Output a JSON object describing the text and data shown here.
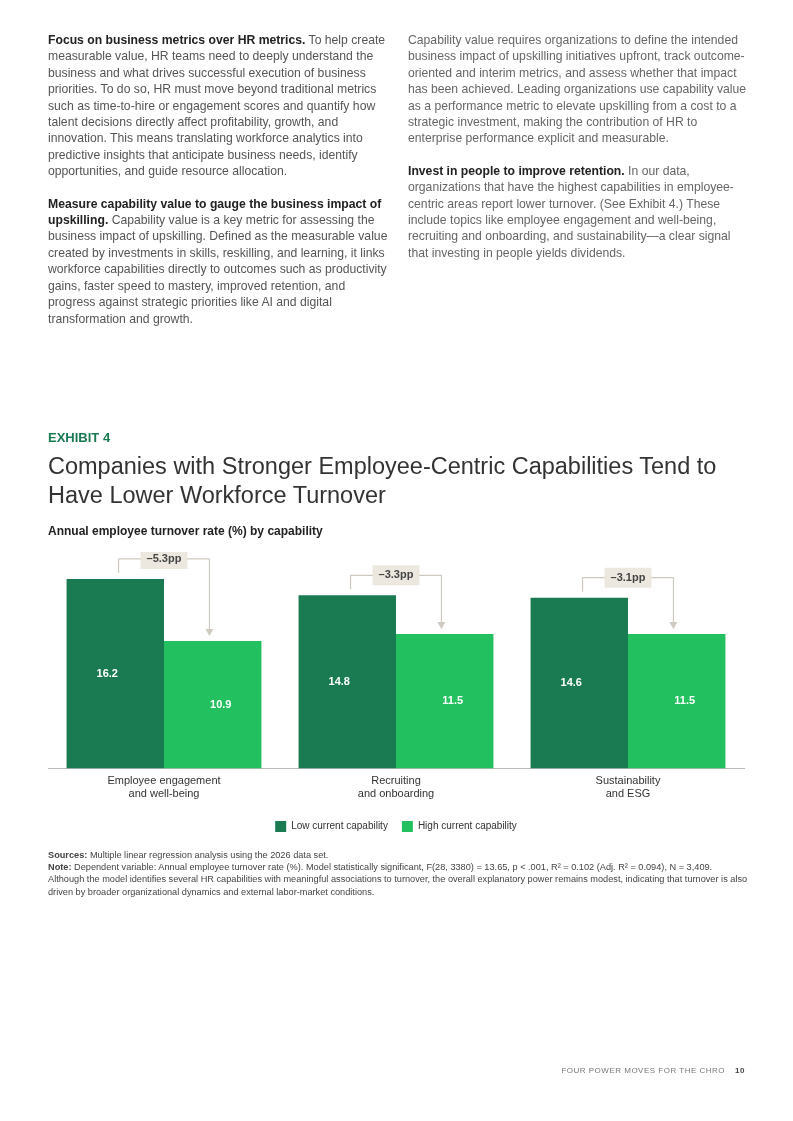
{
  "chart_data": {
    "type": "bar",
    "title": "Companies with Stronger Employee-Centric Capabilities Tend to Have Lower Workforce Turnover",
    "subtitle": "Annual employee turnover rate (%) by capability",
    "categories": [
      "Employee engagement and well-being",
      "Recruiting and onboarding",
      "Sustainability and ESG"
    ],
    "series": [
      {
        "name": "Low current capability",
        "color": "#1a7a52",
        "values": [
          16.2,
          14.8,
          14.6
        ]
      },
      {
        "name": "High current capability",
        "color": "#22c05e",
        "values": [
          10.9,
          11.5,
          11.5
        ]
      }
    ],
    "data_labels": true,
    "legend": "bottom",
    "grid": false,
    "annotations": [
      "Focus on business metrics over HR metrics. To help create measurable value, HR teams need to deeply understand the business and what drives successful execution of business priorities. To do so, HR must move beyond traditional metrics such as time-to-hire or engagement scores and quantify how talent decisions directly affect profitability, growth, and innovation. This means translating workforce analytics into predictive insights that anticipate business needs, identify opportunities, and guide resource allocation.",
      "Measure capability value to gauge the business impact of upskilling. Capability value is a key metric for assessing the business impact of upskilling. Defined as the measurable value created by investments in skills, reskilling, and learning, it links workforce capabilities directly to outcomes such as productivity gains, faster speed to mastery, improved retention, and progress against strategic priorities like AI and digital transformation and growth.",
      "Capability value requires organizations to define the intended business impact of upskilling initiatives upfront, track outcome-oriented and interim metrics, and assess whether that impact has been achieved. Leading organizations use capability value as a performance metric to elevate upskilling from a cost to a strategic investment, making the contribution of HR to enterprise performance explicit and measurable.",
      "Invest in people to improve retention. In our data, organizations that have the highest capabilities in employee-centric areas report lower turnover. (See Exhibit 4.) These include topics like employee engagement and well-being, recruiting and onboarding, and sustainability—a clear signal that investing in people yields dividends.",
      "EXHIBIT 4",
      "Sources: Multiple linear regression analysis using the 2026 data set.",
      "Note: Dependent variable: Annual employee turnover rate (%). Model statistically significant, F(28, 3380) = 13.65, p < .001, R² = 0.102 (Adj. R² = 0.094), N = 3,409. Although the model identifies several HR capabilities with meaningful associations to turnover, the overall explanatory power remains modest, indicating that turnover is also driven by broader organizational dynamics and external labor-market conditions.",
      "FOUR POWER MOVES FOR THE CHRO",
      "10",
      "–5.3pp",
      "–3.3pp",
      "–3.1pp"
    ]
  }
}
